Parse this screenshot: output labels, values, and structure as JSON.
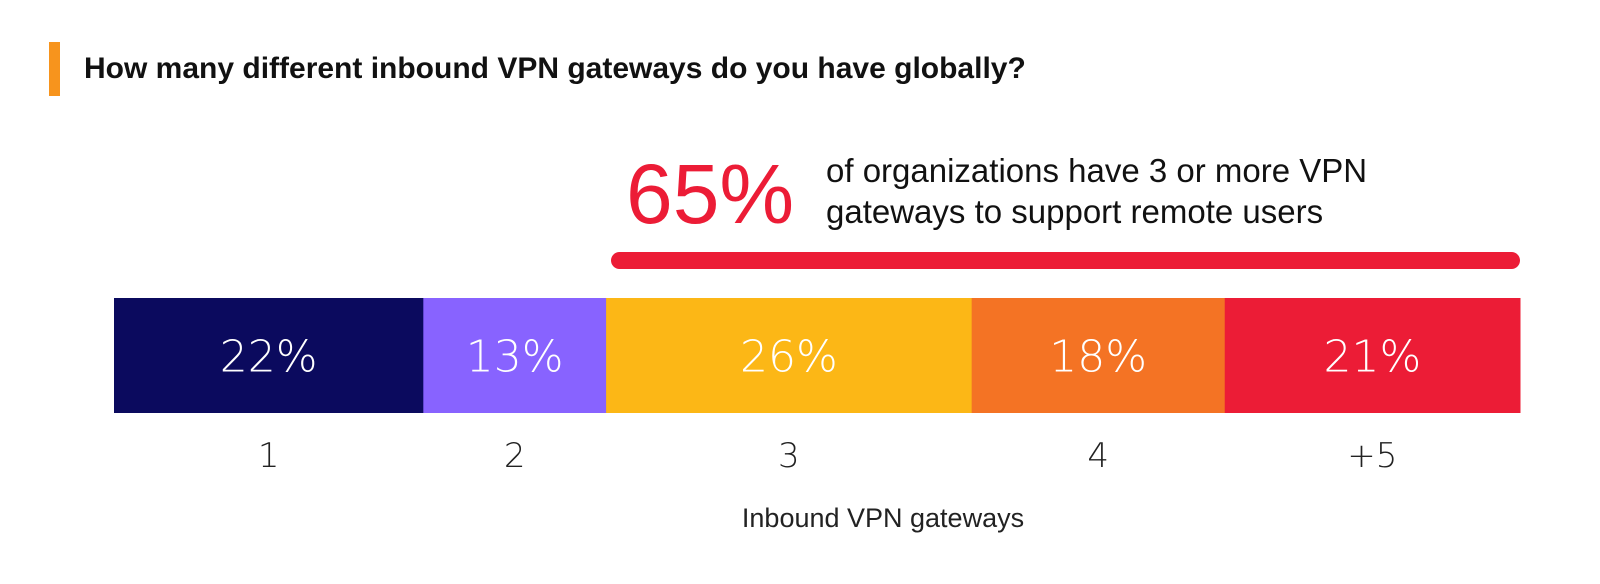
{
  "colors": {
    "accent": "#f7941d",
    "highlight": "#ec1c36"
  },
  "chart_data": {
    "type": "bar",
    "orientation": "horizontal-stacked",
    "title": "How many different inbound VPN gateways do you have globally?",
    "xlabel": "Inbound VPN gateways",
    "ylabel": "",
    "categories": [
      "1",
      "2",
      "3",
      "4",
      "+5"
    ],
    "values": [
      22,
      13,
      26,
      18,
      21
    ],
    "value_labels": [
      "22%",
      "13%",
      "26%",
      "18%",
      "21%"
    ],
    "colors": [
      "#0b0a5e",
      "#8863ff",
      "#fcb716",
      "#f47324",
      "#ec1c36"
    ],
    "callout": {
      "value": "65%",
      "text": "of organizations have 3 or more VPN gateways to support remote users",
      "spans_categories": [
        "3",
        "4",
        "+5"
      ]
    },
    "grid": false,
    "legend": "none"
  }
}
